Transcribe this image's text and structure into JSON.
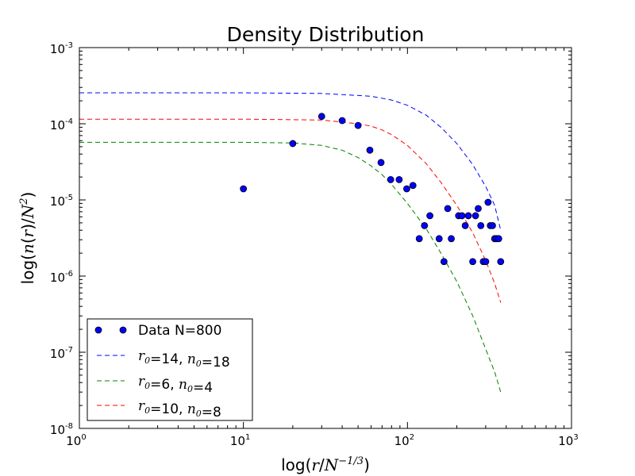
{
  "chart_data": {
    "type": "scatter",
    "title": "Density Distribution",
    "xlabel": "log(r/N^{-1/3})",
    "ylabel": "log(n(r)/N^2)",
    "xscale": "log",
    "yscale": "log",
    "xlim": [
      1,
      1000
    ],
    "ylim": [
      1e-08,
      0.001
    ],
    "x_ticks": [
      1,
      10,
      100,
      1000
    ],
    "y_ticks": [
      1e-08,
      1e-07,
      1e-06,
      1e-05,
      0.0001,
      0.001
    ],
    "x_tick_labels": [
      {
        "base": "10",
        "exp": "0"
      },
      {
        "base": "10",
        "exp": "1"
      },
      {
        "base": "10",
        "exp": "2"
      },
      {
        "base": "10",
        "exp": "3"
      }
    ],
    "y_tick_labels": [
      {
        "base": "10",
        "exp": "-8"
      },
      {
        "base": "10",
        "exp": "-7"
      },
      {
        "base": "10",
        "exp": "-6"
      },
      {
        "base": "10",
        "exp": "-5"
      },
      {
        "base": "10",
        "exp": "-4"
      },
      {
        "base": "10",
        "exp": "-3"
      }
    ],
    "grid": false,
    "legend_position": "lower-left",
    "series": [
      {
        "name": "Data N=800",
        "kind": "scatter",
        "color": "#0000ff",
        "points": [
          [
            10,
            1.4e-05
          ],
          [
            20,
            5.5e-05
          ],
          [
            30,
            0.000125
          ],
          [
            40,
            0.00011
          ],
          [
            50,
            9.5e-05
          ],
          [
            59,
            4.5e-05
          ],
          [
            69,
            3.1e-05
          ],
          [
            79,
            1.85e-05
          ],
          [
            89,
            1.85e-05
          ],
          [
            99,
            1.4e-05
          ],
          [
            108,
            1.55e-05
          ],
          [
            118,
            3.1e-06
          ],
          [
            127,
            4.6e-06
          ],
          [
            137,
            6.2e-06
          ],
          [
            156,
            3.1e-06
          ],
          [
            167,
            1.55e-06
          ],
          [
            176,
            7.7e-06
          ],
          [
            185,
            3.1e-06
          ],
          [
            205,
            6.2e-06
          ],
          [
            215,
            6.2e-06
          ],
          [
            225,
            4.6e-06
          ],
          [
            235,
            6.2e-06
          ],
          [
            250,
            1.55e-06
          ],
          [
            260,
            6.2e-06
          ],
          [
            270,
            7.7e-06
          ],
          [
            280,
            4.6e-06
          ],
          [
            290,
            1.55e-06
          ],
          [
            300,
            1.55e-06
          ],
          [
            310,
            9.3e-06
          ],
          [
            320,
            4.6e-06
          ],
          [
            330,
            4.6e-06
          ],
          [
            340,
            3.1e-06
          ],
          [
            350,
            3.1e-06
          ],
          [
            360,
            3.1e-06
          ],
          [
            370,
            1.55e-06
          ]
        ]
      },
      {
        "name": "r0=14, n0=18",
        "label_parts": [
          {
            "t": "r",
            "sub": "0"
          },
          {
            "t": "=14, "
          },
          {
            "t": "n",
            "sub": "0"
          },
          {
            "t": "=18"
          }
        ],
        "kind": "dashed-line",
        "color": "#0000ff",
        "points": [
          [
            1,
            0.000255
          ],
          [
            10,
            0.000255
          ],
          [
            30,
            0.00025
          ],
          [
            60,
            0.00023
          ],
          [
            80,
            0.000205
          ],
          [
            100,
            0.000175
          ],
          [
            130,
            0.00013
          ],
          [
            160,
            9e-05
          ],
          [
            200,
            5.5e-05
          ],
          [
            250,
            2.9e-05
          ],
          [
            300,
            1.5e-05
          ],
          [
            340,
            8.5e-06
          ],
          [
            370,
            4e-06
          ]
        ]
      },
      {
        "name": "r0=6, n0=4",
        "label_parts": [
          {
            "t": "r",
            "sub": "0"
          },
          {
            "t": "=6, "
          },
          {
            "t": "n",
            "sub": "0"
          },
          {
            "t": "=4"
          }
        ],
        "kind": "dashed-line",
        "color": "#008000",
        "points": [
          [
            1,
            5.7e-05
          ],
          [
            10,
            5.7e-05
          ],
          [
            20,
            5.6e-05
          ],
          [
            30,
            5.2e-05
          ],
          [
            40,
            4.5e-05
          ],
          [
            50,
            3.6e-05
          ],
          [
            60,
            2.8e-05
          ],
          [
            70,
            2.15e-05
          ],
          [
            80,
            1.6e-05
          ],
          [
            100,
            9e-06
          ],
          [
            130,
            4.2e-06
          ],
          [
            160,
            2e-06
          ],
          [
            200,
            8.5e-07
          ],
          [
            250,
            3e-07
          ],
          [
            300,
            1.1e-07
          ],
          [
            340,
            5.5e-08
          ],
          [
            370,
            3e-08
          ]
        ]
      },
      {
        "name": "r0=10, n0=8",
        "label_parts": [
          {
            "t": "r",
            "sub": "0"
          },
          {
            "t": "=10, "
          },
          {
            "t": "n",
            "sub": "0"
          },
          {
            "t": "=8"
          }
        ],
        "kind": "dashed-line",
        "color": "#ff0000",
        "points": [
          [
            1,
            0.000115
          ],
          [
            10,
            0.000115
          ],
          [
            30,
            0.000112
          ],
          [
            50,
            0.0001
          ],
          [
            60,
            9.3e-05
          ],
          [
            70,
            8.3e-05
          ],
          [
            80,
            7.2e-05
          ],
          [
            100,
            5.2e-05
          ],
          [
            130,
            3e-05
          ],
          [
            160,
            1.7e-05
          ],
          [
            200,
            8.5e-06
          ],
          [
            250,
            3.7e-06
          ],
          [
            300,
            1.6e-06
          ],
          [
            340,
            8e-07
          ],
          [
            370,
            4.5e-07
          ]
        ]
      }
    ]
  }
}
